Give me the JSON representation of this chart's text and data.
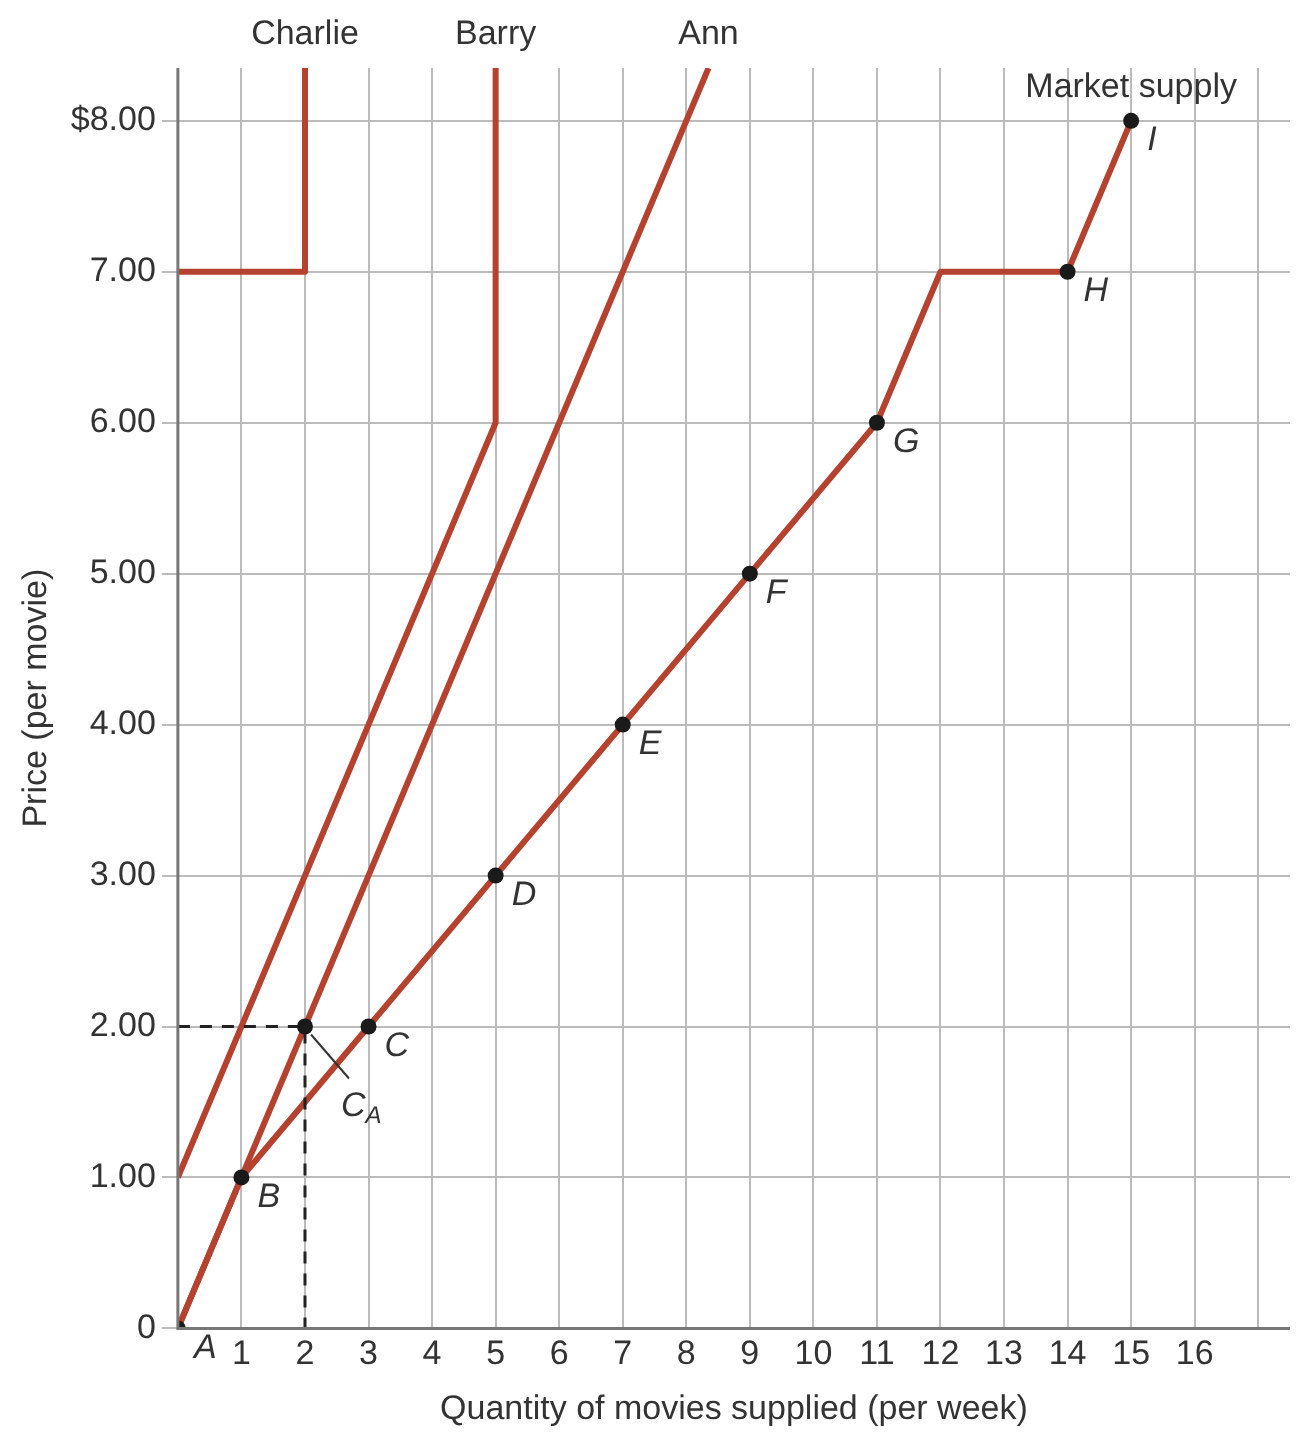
{
  "chart_data": {
    "type": "line",
    "xlabel": "Quantity of movies supplied (per week)",
    "ylabel": "Price (per movie)",
    "xlim": [
      0,
      17.5
    ],
    "xticks": [
      {
        "value": 0,
        "label": null
      },
      1,
      2,
      3,
      4,
      5,
      6,
      7,
      8,
      9,
      10,
      11,
      12,
      13,
      14,
      15,
      16,
      {
        "value": 17,
        "label": null
      }
    ],
    "ylim": [
      0,
      8.35
    ],
    "yticks": [
      0,
      {
        "value": 1,
        "label": "1.00"
      },
      {
        "value": 2,
        "label": "2.00"
      },
      {
        "value": 3,
        "label": "3.00"
      },
      {
        "value": 4,
        "label": "4.00"
      },
      {
        "value": 5,
        "label": "5.00"
      },
      {
        "value": 6,
        "label": "6.00"
      },
      {
        "value": 7,
        "label": "7.00"
      },
      {
        "value": 8,
        "label": "$8.00"
      }
    ],
    "grid": true,
    "legend": false,
    "marker": "none",
    "line_style": "solid",
    "series": [
      {
        "name": "Charlie",
        "color": "#b5412f",
        "x": [
          0,
          2,
          2
        ],
        "values": [
          7,
          7,
          8.35
        ]
      },
      {
        "name": "Barry",
        "color": "#b5412f",
        "x": [
          0,
          5,
          5
        ],
        "values": [
          1,
          6,
          8.35
        ]
      },
      {
        "name": "Ann",
        "color": "#b5412f",
        "x": [
          0,
          8.35
        ],
        "values": [
          0,
          8.35
        ]
      },
      {
        "name": "Market supply",
        "color": "#b5412f",
        "x": [
          0,
          1,
          3,
          5,
          7,
          9,
          11,
          12,
          14,
          15
        ],
        "values": [
          0,
          1,
          2,
          3,
          4,
          5,
          6,
          7,
          7,
          8
        ]
      },
      {
        "type": "line",
        "line_style": "dashed",
        "color": "#222222",
        "x": [
          0,
          2,
          2
        ],
        "values": [
          2,
          2,
          0
        ]
      },
      {
        "type": "scatter",
        "marker": "circle",
        "color": "#1a1a1a",
        "x": [
          0,
          1,
          2,
          3,
          5,
          7,
          9,
          11,
          14,
          15
        ],
        "values": [
          0,
          1,
          2,
          2,
          3,
          4,
          5,
          6,
          7,
          8
        ]
      }
    ],
    "annotations": [
      {
        "text": "A",
        "x": 0,
        "y": 0
      },
      {
        "text": "B",
        "x": 1,
        "y": 1
      },
      {
        "text": "C$_{A}$",
        "x": 2,
        "y": 2
      },
      {
        "text": "C",
        "x": 3,
        "y": 2
      },
      {
        "text": "D",
        "x": 5,
        "y": 3
      },
      {
        "text": "E",
        "x": 7,
        "y": 4
      },
      {
        "text": "F",
        "x": 9,
        "y": 5
      },
      {
        "text": "G",
        "x": 11,
        "y": 6
      },
      {
        "text": "H",
        "x": 14,
        "y": 7
      },
      {
        "text": "I",
        "x": 15,
        "y": 8
      }
    ]
  }
}
